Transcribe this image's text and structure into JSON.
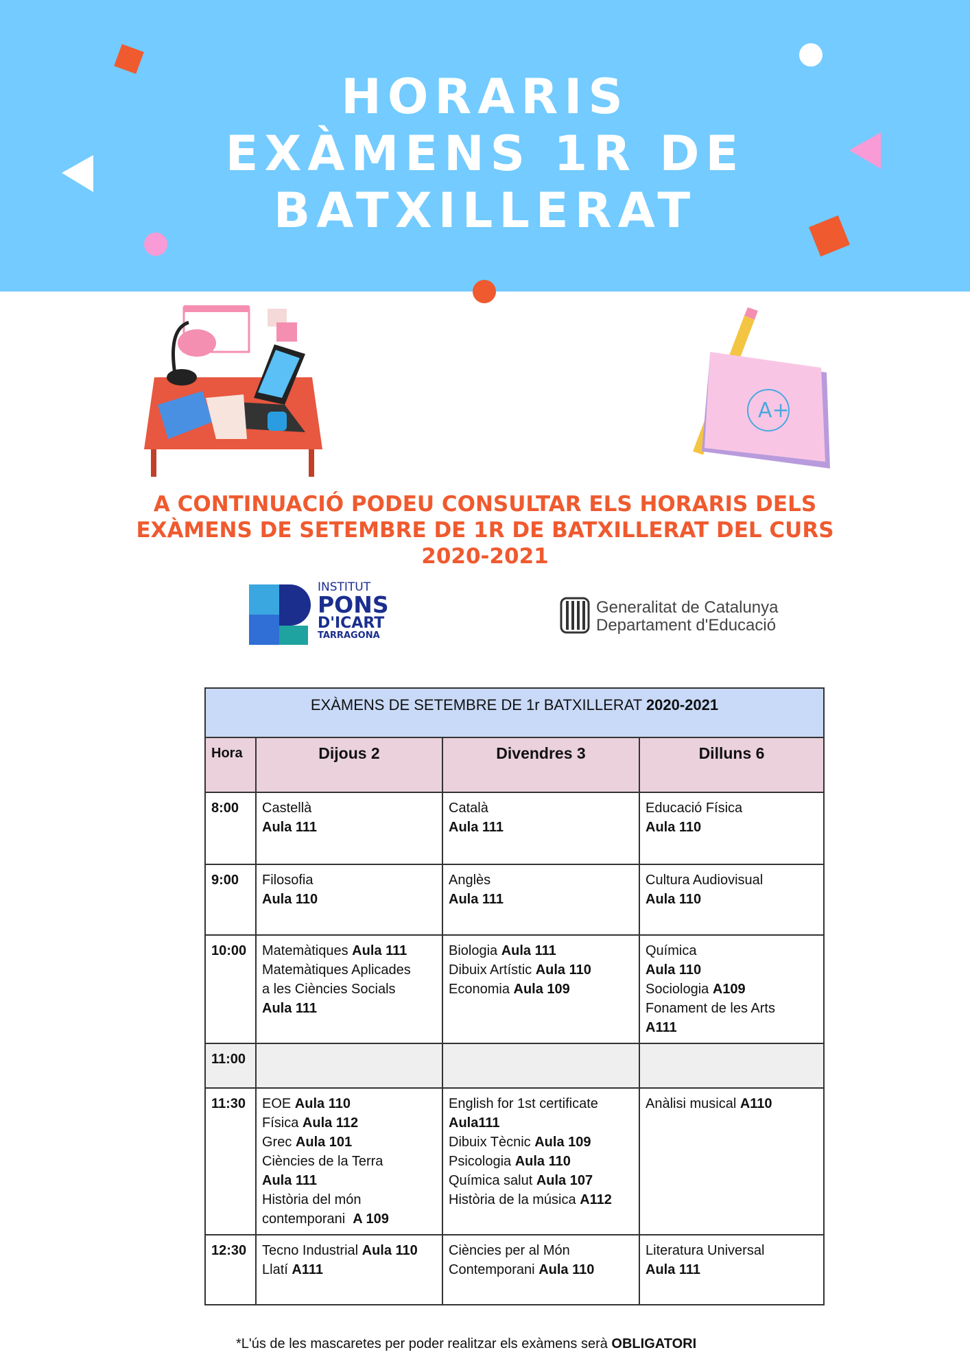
{
  "banner": {
    "title_lines": [
      "HORARIS",
      "EXÀMENS 1R DE",
      "BATXILLERAT"
    ],
    "background": "#73cbff"
  },
  "intro": {
    "lines": [
      "A CONTINUACIÓ PODEU CONSULTAR ELS HORARIS DELS",
      "EXÀMENS DE SETEMBRE DE 1R DE BATXILLERAT DEL CURS",
      "2020-2021"
    ],
    "color": "#ef5a2f"
  },
  "logos": {
    "institut": {
      "line1": "INSTITUT",
      "line2": "PONS",
      "line3": "D'ICART",
      "line4": "TARRAGONA"
    },
    "generalitat": {
      "line1": "Generalitat de Catalunya",
      "line2": "Departament d'Educació"
    }
  },
  "table": {
    "caption": "EXÀMENS DE SETEMBRE DE 1r BATXILLERAT ",
    "caption_bold": "2020-2021",
    "hora_label": "Hora",
    "days": [
      "Dijous 2",
      "Divendres 3",
      "Dilluns 6"
    ],
    "rows": [
      {
        "time": "8:00",
        "cells": [
          [
            [
              [
                "Castellà",
                false
              ]
            ],
            [
              [
                "Aula 111",
                true
              ]
            ]
          ],
          [
            [
              [
                "Català",
                false
              ]
            ],
            [
              [
                "Aula 111",
                true
              ]
            ]
          ],
          [
            [
              [
                "Educació Física",
                false
              ]
            ],
            [
              [
                "Aula 110",
                true
              ]
            ]
          ]
        ]
      },
      {
        "time": "9:00",
        "cells": [
          [
            [
              [
                "Filosofia",
                false
              ]
            ],
            [
              [
                "Aula 110",
                true
              ]
            ]
          ],
          [
            [
              [
                "Anglès",
                false
              ]
            ],
            [
              [
                "Aula 111",
                true
              ]
            ]
          ],
          [
            [
              [
                "Cultura Audiovisual",
                false
              ]
            ],
            [
              [
                "Aula 110",
                true
              ]
            ]
          ]
        ]
      },
      {
        "time": "10:00",
        "cells": [
          [
            [
              [
                "Matemàtiques ",
                false
              ],
              [
                "Aula 111",
                true
              ]
            ],
            [
              [
                "Matemàtiques Aplicades",
                false
              ]
            ],
            [
              [
                "a les Ciències Socials",
                false
              ]
            ],
            [
              [
                "Aula 111",
                true
              ]
            ]
          ],
          [
            [
              [
                "Biologia ",
                false
              ],
              [
                "Aula 111",
                true
              ]
            ],
            [
              [
                "Dibuix Artístic ",
                false
              ],
              [
                "Aula 110",
                true
              ]
            ],
            [
              [
                "Economia ",
                false
              ],
              [
                "Aula 109",
                true
              ]
            ]
          ],
          [
            [
              [
                "Química",
                false
              ]
            ],
            [
              [
                "Aula 110",
                true
              ]
            ],
            [
              [
                "Sociologia ",
                false
              ],
              [
                "A109",
                true
              ]
            ],
            [
              [
                "Fonament de les Arts",
                false
              ]
            ],
            [
              [
                "A111",
                true
              ]
            ]
          ]
        ]
      },
      {
        "time": "11:00",
        "break": true,
        "cells": [
          [],
          [],
          []
        ]
      },
      {
        "time": "11:30",
        "cells": [
          [
            [
              [
                "EOE ",
                false
              ],
              [
                "Aula 110",
                true
              ]
            ],
            [
              [
                "Física ",
                false
              ],
              [
                "Aula 112",
                true
              ]
            ],
            [
              [
                "Grec ",
                false
              ],
              [
                "Aula 101",
                true
              ]
            ],
            [
              [
                "Ciències de la Terra",
                false
              ]
            ],
            [
              [
                "Aula 111",
                true
              ]
            ],
            [
              [
                "Història del món",
                false
              ]
            ],
            [
              [
                "contemporani  ",
                false
              ],
              [
                "A 109",
                true
              ]
            ]
          ],
          [
            [
              [
                "English for 1st certificate",
                false
              ]
            ],
            [
              [
                "Aula111",
                true
              ]
            ],
            [
              [
                "Dibuix Tècnic ",
                false
              ],
              [
                "Aula 109",
                true
              ]
            ],
            [
              [
                "Psicologia ",
                false
              ],
              [
                "Aula 110",
                true
              ]
            ],
            [
              [
                "Química salut ",
                false
              ],
              [
                "Aula 107",
                true
              ]
            ],
            [
              [
                "Història de la música ",
                false
              ],
              [
                "A112",
                true
              ]
            ]
          ],
          [
            [
              [
                "Anàlisi musical ",
                false
              ],
              [
                "A110",
                true
              ]
            ]
          ]
        ]
      },
      {
        "time": "12:30",
        "cells": [
          [
            [
              [
                "Tecno Industrial ",
                false
              ],
              [
                "Aula 110",
                true
              ]
            ],
            [
              [
                "Llatí ",
                false
              ],
              [
                "A111",
                true
              ]
            ]
          ],
          [
            [
              [
                "Ciències per al Món",
                false
              ]
            ],
            [
              [
                "Contemporani ",
                false
              ],
              [
                "Aula 110",
                true
              ]
            ]
          ],
          [
            [
              [
                "Literatura Universal",
                false
              ]
            ],
            [
              [
                "Aula 111",
                true
              ]
            ]
          ]
        ]
      }
    ]
  },
  "footer": {
    "text": "*L'ús de les mascaretes per poder realitzar els exàmens serà ",
    "bold": "OBLIGATORI"
  }
}
